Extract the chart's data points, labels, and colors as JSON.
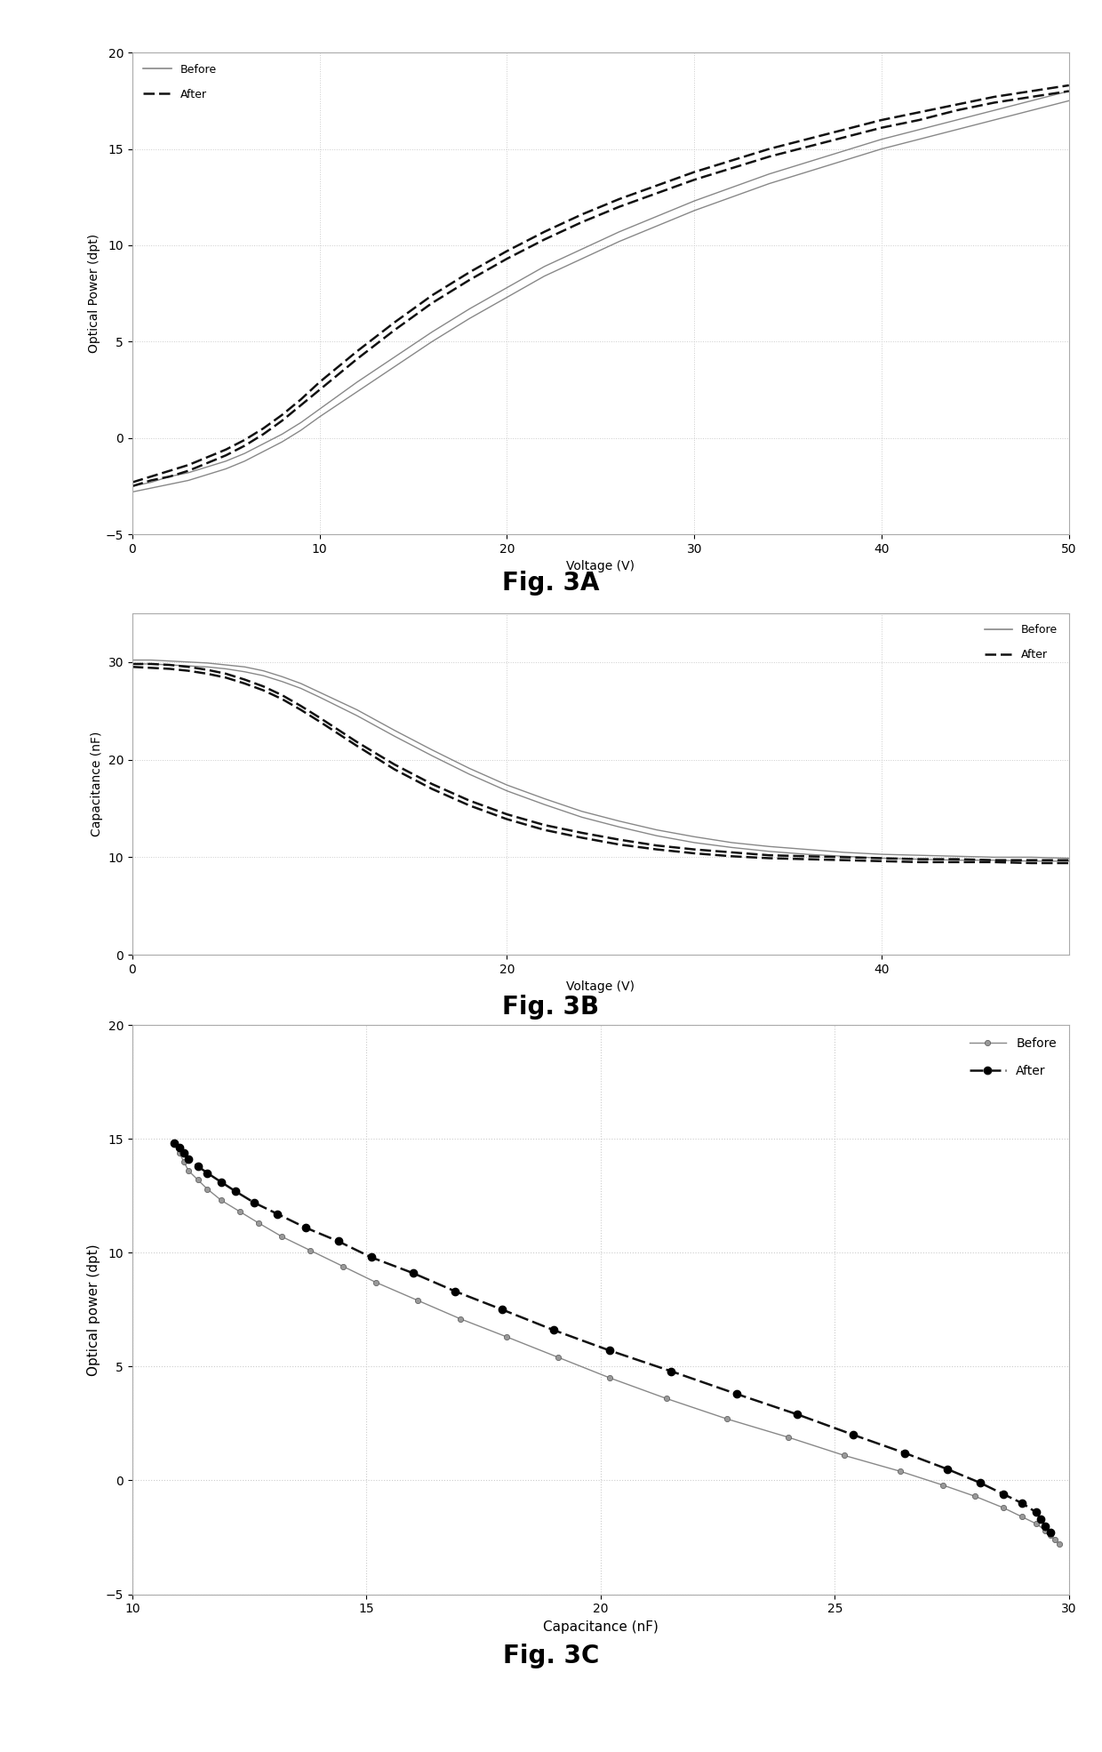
{
  "fig3A": {
    "caption": "Fig. 3A",
    "xlabel": "Voltage (V)",
    "ylabel": "Optical Power (dpt)",
    "xlim": [
      0,
      50
    ],
    "ylim": [
      -5,
      20
    ],
    "xticks": [
      0,
      10,
      20,
      30,
      40,
      50
    ],
    "yticks": [
      -5,
      0,
      5,
      10,
      15,
      20
    ],
    "before_x": [
      0,
      1,
      2,
      3,
      4,
      5,
      6,
      7,
      8,
      9,
      10,
      12,
      14,
      16,
      18,
      20,
      22,
      24,
      26,
      28,
      30,
      32,
      34,
      36,
      38,
      40,
      42,
      44,
      46,
      48,
      50
    ],
    "before_y1": [
      -2.8,
      -2.6,
      -2.4,
      -2.2,
      -1.9,
      -1.6,
      -1.2,
      -0.7,
      -0.2,
      0.4,
      1.1,
      2.4,
      3.7,
      5.0,
      6.2,
      7.3,
      8.4,
      9.3,
      10.2,
      11.0,
      11.8,
      12.5,
      13.2,
      13.8,
      14.4,
      15.0,
      15.5,
      16.0,
      16.5,
      17.0,
      17.5
    ],
    "before_y2": [
      -2.5,
      -2.3,
      -2.0,
      -1.8,
      -1.5,
      -1.2,
      -0.8,
      -0.3,
      0.2,
      0.8,
      1.5,
      2.9,
      4.2,
      5.5,
      6.7,
      7.8,
      8.9,
      9.8,
      10.7,
      11.5,
      12.3,
      13.0,
      13.7,
      14.3,
      14.9,
      15.5,
      16.0,
      16.5,
      17.0,
      17.5,
      18.0
    ],
    "after_x": [
      0,
      1,
      2,
      3,
      4,
      5,
      6,
      7,
      8,
      9,
      10,
      12,
      14,
      16,
      18,
      20,
      22,
      24,
      26,
      28,
      30,
      32,
      34,
      36,
      38,
      40,
      42,
      44,
      46,
      48,
      50
    ],
    "after_y1": [
      -2.5,
      -2.2,
      -2.0,
      -1.7,
      -1.3,
      -0.9,
      -0.4,
      0.2,
      0.9,
      1.7,
      2.5,
      4.1,
      5.6,
      7.0,
      8.2,
      9.3,
      10.3,
      11.2,
      12.0,
      12.7,
      13.4,
      14.0,
      14.6,
      15.1,
      15.6,
      16.1,
      16.5,
      17.0,
      17.4,
      17.7,
      18.0
    ],
    "after_y2": [
      -2.3,
      -2.0,
      -1.7,
      -1.4,
      -1.0,
      -0.6,
      -0.1,
      0.5,
      1.2,
      2.0,
      2.9,
      4.5,
      6.0,
      7.4,
      8.6,
      9.7,
      10.7,
      11.6,
      12.4,
      13.1,
      13.8,
      14.4,
      15.0,
      15.5,
      16.0,
      16.5,
      16.9,
      17.3,
      17.7,
      18.0,
      18.3
    ]
  },
  "fig3B": {
    "caption": "Fig. 3B",
    "xlabel": "Voltage (V)",
    "ylabel": "Capacitance (nF)",
    "xlim": [
      0,
      50
    ],
    "ylim": [
      0,
      35
    ],
    "xticks": [
      0,
      20,
      40
    ],
    "yticks": [
      0,
      10,
      20,
      30
    ],
    "before_x": [
      0,
      1,
      2,
      3,
      4,
      5,
      6,
      7,
      8,
      9,
      10,
      12,
      14,
      16,
      18,
      20,
      22,
      24,
      26,
      28,
      30,
      32,
      34,
      36,
      38,
      40,
      42,
      44,
      46,
      48,
      50
    ],
    "before_y1": [
      29.8,
      29.8,
      29.7,
      29.6,
      29.5,
      29.3,
      29.0,
      28.6,
      28.0,
      27.3,
      26.4,
      24.5,
      22.4,
      20.4,
      18.5,
      16.8,
      15.4,
      14.1,
      13.1,
      12.2,
      11.5,
      11.0,
      10.6,
      10.3,
      10.1,
      9.9,
      9.8,
      9.7,
      9.7,
      9.6,
      9.6
    ],
    "before_y2": [
      30.2,
      30.2,
      30.1,
      30.0,
      29.9,
      29.7,
      29.5,
      29.1,
      28.5,
      27.8,
      26.9,
      25.1,
      23.0,
      21.0,
      19.1,
      17.4,
      16.0,
      14.7,
      13.7,
      12.8,
      12.1,
      11.5,
      11.1,
      10.8,
      10.5,
      10.3,
      10.2,
      10.1,
      10.0,
      10.0,
      9.9
    ],
    "after_x": [
      0,
      1,
      2,
      3,
      4,
      5,
      6,
      7,
      8,
      9,
      10,
      12,
      14,
      16,
      18,
      20,
      22,
      24,
      26,
      28,
      30,
      32,
      34,
      36,
      38,
      40,
      42,
      44,
      46,
      48,
      50
    ],
    "after_y1": [
      29.5,
      29.4,
      29.3,
      29.1,
      28.8,
      28.4,
      27.8,
      27.1,
      26.2,
      25.1,
      23.9,
      21.4,
      19.0,
      17.0,
      15.3,
      13.9,
      12.8,
      12.0,
      11.3,
      10.8,
      10.4,
      10.1,
      9.9,
      9.8,
      9.7,
      9.6,
      9.5,
      9.5,
      9.5,
      9.4,
      9.4
    ],
    "after_y2": [
      29.8,
      29.8,
      29.7,
      29.5,
      29.2,
      28.8,
      28.2,
      27.5,
      26.6,
      25.5,
      24.3,
      21.8,
      19.5,
      17.5,
      15.8,
      14.4,
      13.3,
      12.5,
      11.8,
      11.2,
      10.8,
      10.5,
      10.2,
      10.1,
      10.0,
      9.9,
      9.8,
      9.8,
      9.7,
      9.7,
      9.7
    ]
  },
  "fig3C": {
    "caption": "Fig. 3C",
    "xlabel": "Capacitance (nF)",
    "ylabel": "Optical power (dpt)",
    "xlim": [
      10,
      30
    ],
    "ylim": [
      -5,
      20
    ],
    "xticks": [
      10,
      15,
      20,
      25,
      30
    ],
    "yticks": [
      -5,
      0,
      5,
      10,
      15,
      20
    ],
    "before_cap": [
      29.8,
      29.7,
      29.6,
      29.5,
      29.3,
      29.0,
      28.6,
      28.0,
      27.3,
      26.4,
      25.2,
      24.0,
      22.7,
      21.4,
      20.2,
      19.1,
      18.0,
      17.0,
      16.1,
      15.2,
      14.5,
      13.8,
      13.2,
      12.7,
      12.3,
      11.9,
      11.6,
      11.4,
      11.2,
      11.1,
      11.0
    ],
    "before_op": [
      -2.8,
      -2.6,
      -2.4,
      -2.2,
      -1.9,
      -1.6,
      -1.2,
      -0.7,
      -0.2,
      0.4,
      1.1,
      1.9,
      2.7,
      3.6,
      4.5,
      5.4,
      6.3,
      7.1,
      7.9,
      8.7,
      9.4,
      10.1,
      10.7,
      11.3,
      11.8,
      12.3,
      12.8,
      13.2,
      13.6,
      14.0,
      14.4
    ],
    "after_cap": [
      29.6,
      29.5,
      29.4,
      29.3,
      29.0,
      28.6,
      28.1,
      27.4,
      26.5,
      25.4,
      24.2,
      22.9,
      21.5,
      20.2,
      19.0,
      17.9,
      16.9,
      16.0,
      15.1,
      14.4,
      13.7,
      13.1,
      12.6,
      12.2,
      11.9,
      11.6,
      11.4,
      11.2,
      11.1,
      11.0,
      10.9
    ],
    "after_op": [
      -2.3,
      -2.0,
      -1.7,
      -1.4,
      -1.0,
      -0.6,
      -0.1,
      0.5,
      1.2,
      2.0,
      2.9,
      3.8,
      4.8,
      5.7,
      6.6,
      7.5,
      8.3,
      9.1,
      9.8,
      10.5,
      11.1,
      11.7,
      12.2,
      12.7,
      13.1,
      13.5,
      13.8,
      14.1,
      14.4,
      14.6,
      14.8
    ]
  },
  "gray_color": "#888888",
  "black_color": "#111111",
  "bg_color": "#ffffff",
  "grid_color": "#cccccc",
  "border_color": "#aaaaaa"
}
